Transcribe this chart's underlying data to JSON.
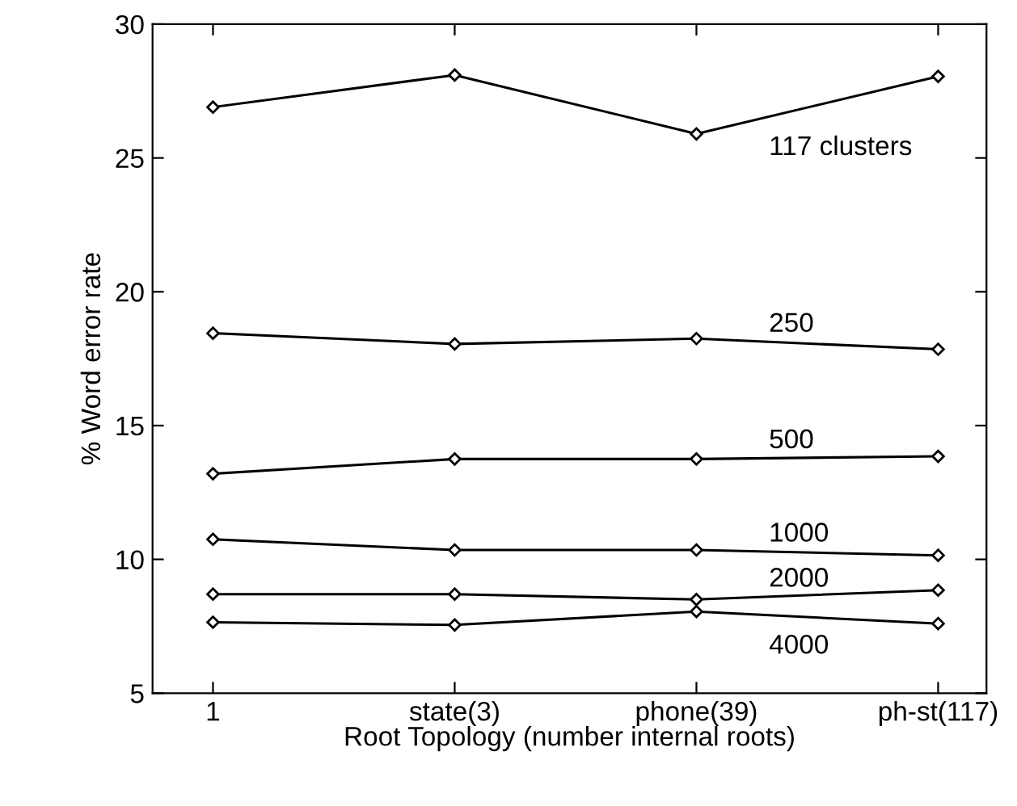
{
  "chart_data": {
    "type": "line",
    "xlabel": "Root Topology (number internal roots)",
    "ylabel": "% Word error rate",
    "categories": [
      "1",
      "state(3)",
      "phone(39)",
      "ph-st(117)"
    ],
    "series": [
      {
        "name": "117 clusters",
        "color": "#000000",
        "values": [
          26.9,
          28.1,
          25.9,
          28.05
        ]
      },
      {
        "name": "250",
        "color": "#000000",
        "values": [
          18.45,
          18.05,
          18.25,
          17.85
        ]
      },
      {
        "name": "500",
        "color": "#000000",
        "values": [
          13.2,
          13.75,
          13.75,
          13.85
        ]
      },
      {
        "name": "1000",
        "color": "#000000",
        "values": [
          10.75,
          10.35,
          10.35,
          10.15
        ]
      },
      {
        "name": "2000",
        "color": "#000000",
        "values": [
          8.7,
          8.7,
          8.5,
          8.85
        ]
      },
      {
        "name": "4000",
        "color": "#000000",
        "values": [
          7.65,
          7.55,
          8.05,
          7.6
        ]
      }
    ],
    "ylim": [
      5,
      30
    ],
    "yticks": [
      5,
      10,
      15,
      20,
      25,
      30
    ],
    "grid": false,
    "marker": "diamond",
    "line_style": "solid"
  }
}
